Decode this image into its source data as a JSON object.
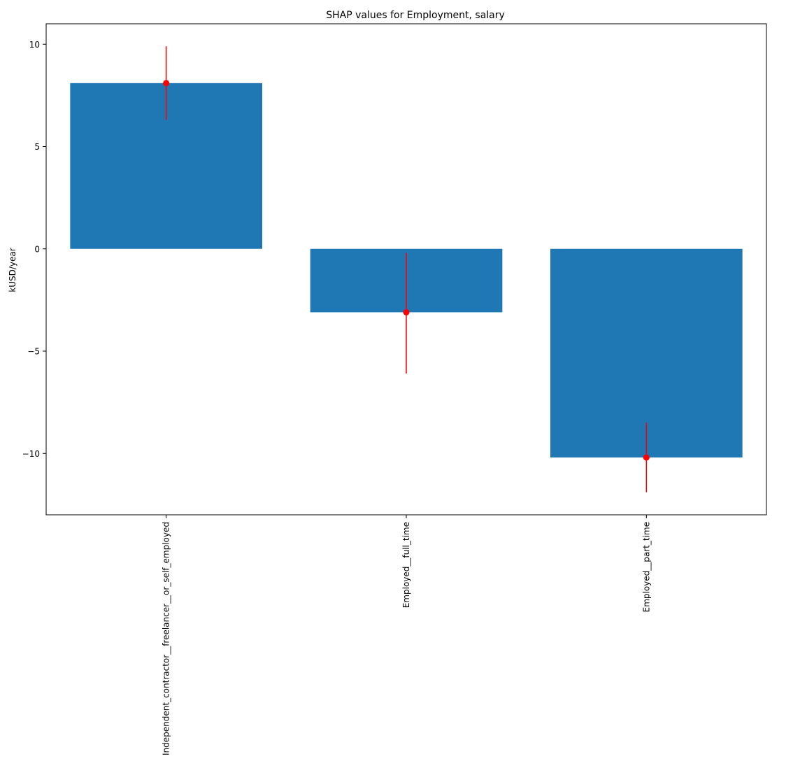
{
  "chart_data": {
    "type": "bar",
    "title": "SHAP values for Employment, salary",
    "xlabel": "",
    "ylabel": "kUSD/year",
    "categories": [
      "Independent_contractor__freelancer__or_self_employed",
      "Employed__full_time",
      "Employed__part_time"
    ],
    "values": [
      8.1,
      -3.1,
      -10.2
    ],
    "error_bars": [
      {
        "low": 6.3,
        "high": 9.9
      },
      {
        "low": -6.1,
        "high": -0.2
      },
      {
        "low": -11.9,
        "high": -8.5
      }
    ],
    "ylim": [
      -13.0,
      11.0
    ],
    "yticks": [
      10,
      5,
      0,
      -5,
      -10
    ],
    "ytick_labels": [
      "10",
      "5",
      "0",
      "−5",
      "−10"
    ],
    "grid": false,
    "colors": {
      "bar": "#1f77b4",
      "error": "#ff0000",
      "axis": "#000000"
    }
  }
}
